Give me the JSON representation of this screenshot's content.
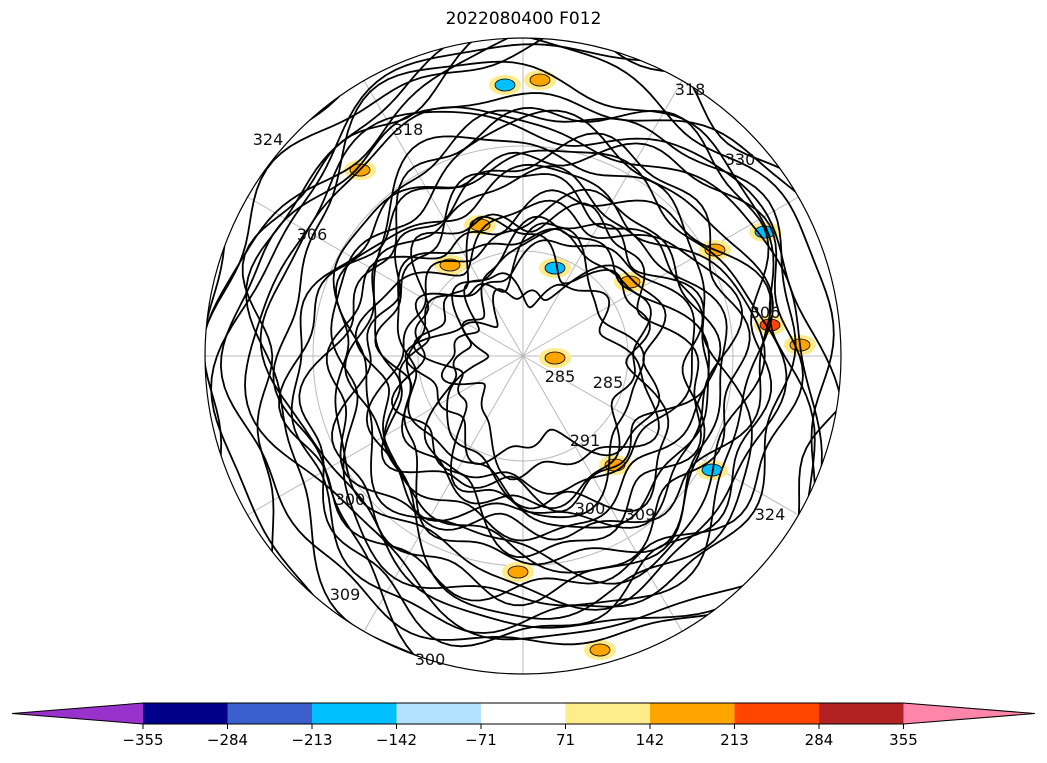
{
  "title": "2022080400 F012",
  "map": {
    "projection": "north-polar-stereographic",
    "contour_labels": [
      "285",
      "285",
      "291",
      "300",
      "300",
      "306",
      "306",
      "309",
      "318",
      "318",
      "324",
      "324",
      "330",
      "300",
      "309"
    ],
    "shading_colors": {
      "orange": "#ffa500",
      "light_orange": "#ffeb8c",
      "cyan": "#00bfff",
      "red": "#ff4500"
    }
  },
  "colorbar": {
    "colors": [
      "#9932cc",
      "#00008b",
      "#3a5fcd",
      "#00bfff",
      "#b2e2ff",
      "#ffffff",
      "#ffec8b",
      "#ffa500",
      "#ff4500",
      "#b22222",
      "#ff85aa"
    ],
    "ticks": [
      "−355",
      "−284",
      "−213",
      "−142",
      "−71",
      "71",
      "142",
      "213",
      "284",
      "355"
    ]
  }
}
